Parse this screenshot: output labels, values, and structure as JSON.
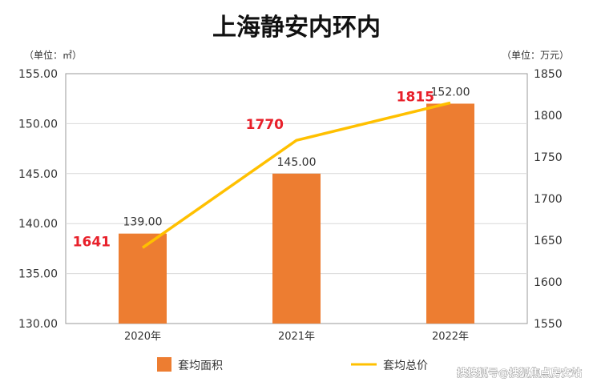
{
  "chart_data": {
    "type": "bar",
    "title": "上海静安内环内",
    "left_unit_label": "（单位：㎡）",
    "right_unit_label": "（单位：万元）",
    "categories": [
      "2020年",
      "2021年",
      "2022年"
    ],
    "series": [
      {
        "name": "套均面积",
        "type": "bar",
        "axis": "left",
        "color": "#ed7d31",
        "values": [
          139.0,
          145.0,
          152.0
        ],
        "value_labels": [
          "139.00",
          "145.00",
          "152.00"
        ]
      },
      {
        "name": "套均总价",
        "type": "line",
        "axis": "right",
        "color": "#ffc000",
        "values": [
          1641,
          1770,
          1815
        ],
        "value_labels": [
          "1641",
          "1770",
          "1815"
        ]
      }
    ],
    "y_left": {
      "ylim": [
        130,
        155
      ],
      "ticks": [
        130,
        135,
        140,
        145,
        150,
        155
      ],
      "tick_labels": [
        "130.00",
        "135.00",
        "140.00",
        "145.00",
        "150.00",
        "155.00"
      ]
    },
    "y_right": {
      "ylim": [
        1550,
        1850
      ],
      "ticks": [
        1550,
        1600,
        1650,
        1700,
        1750,
        1800,
        1850
      ],
      "tick_labels": [
        "1550",
        "1600",
        "1650",
        "1700",
        "1750",
        "1800",
        "1850"
      ]
    },
    "grid": true,
    "legend": "bottom"
  },
  "watermark": "搜搜狐号@搜狐焦点房安站"
}
